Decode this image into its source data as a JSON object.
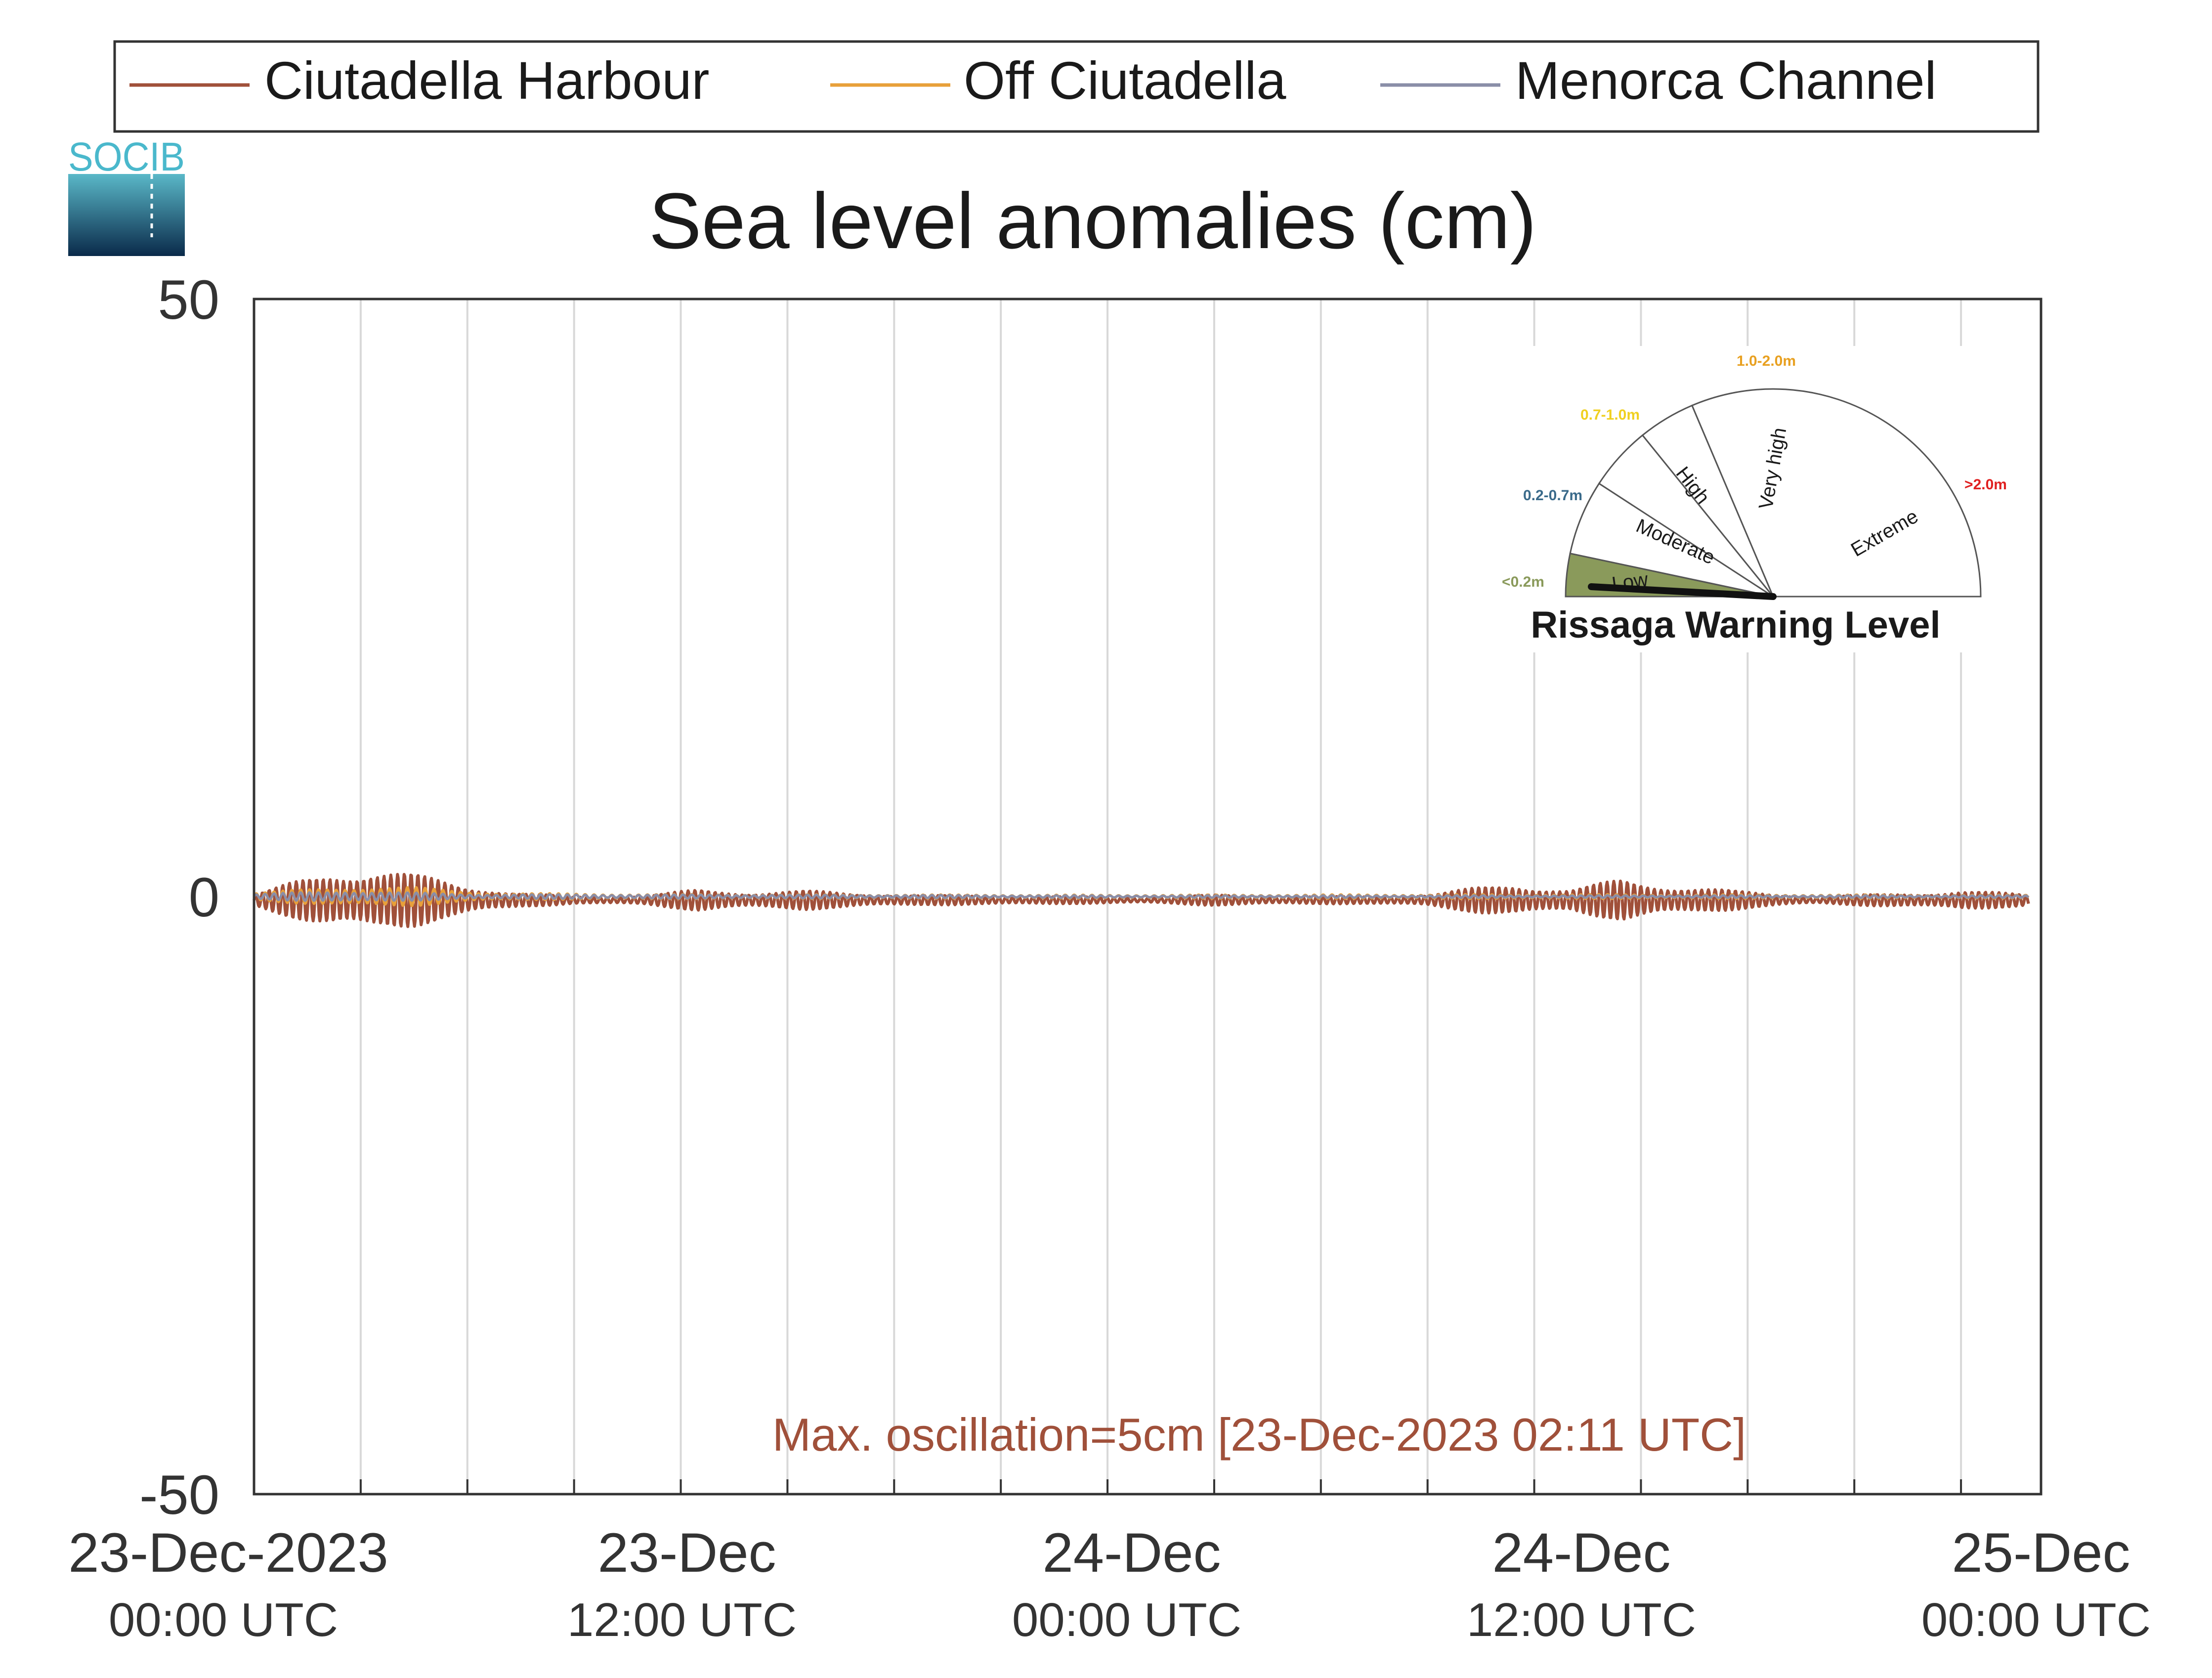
{
  "chart_data": {
    "type": "line",
    "title": "Sea level anomalies (cm)",
    "xlabel": "",
    "ylabel": "",
    "ylim": [
      -50,
      50
    ],
    "yticks": [
      "50",
      "0",
      "-50"
    ],
    "x_range": [
      "23-Dec-2023 00:00 UTC",
      "25-Dec-2023 05:00 UTC"
    ],
    "xticks": [
      {
        "date": "23-Dec-2023",
        "time": "00:00 UTC"
      },
      {
        "date": "23-Dec",
        "time": "12:00 UTC"
      },
      {
        "date": "24-Dec",
        "time": "00:00 UTC"
      },
      {
        "date": "24-Dec",
        "time": "12:00 UTC"
      },
      {
        "date": "25-Dec",
        "time": "00:00 UTC"
      }
    ],
    "grid": true,
    "legend_position": "top",
    "series": [
      {
        "name": "Ciutadella Harbour",
        "color": "#a0503a",
        "envelope_cm": [
          {
            "hour": 0,
            "amp": 0.5
          },
          {
            "hour": 1.2,
            "amp": 1.6
          },
          {
            "hour": 2.2,
            "amp": 2.5
          },
          {
            "hour": 3.3,
            "amp": 2.7
          },
          {
            "hour": 4.5,
            "amp": 2.2
          },
          {
            "hour": 6,
            "amp": 1.3
          },
          {
            "hour": 7.5,
            "amp": 0.6
          },
          {
            "hour": 9,
            "amp": 0.3
          },
          {
            "hour": 11,
            "amp": 0.4
          },
          {
            "hour": 12.5,
            "amp": 0.9
          },
          {
            "hour": 14,
            "amp": 0.7
          },
          {
            "hour": 15.5,
            "amp": 0.8
          },
          {
            "hour": 17,
            "amp": 0.6
          },
          {
            "hour": 19,
            "amp": 0.4
          },
          {
            "hour": 21,
            "amp": 0.4
          },
          {
            "hour": 23,
            "amp": 0.3
          },
          {
            "hour": 25,
            "amp": 0.25
          },
          {
            "hour": 27,
            "amp": 0.45
          },
          {
            "hour": 29,
            "amp": 0.35
          },
          {
            "hour": 31,
            "amp": 0.3
          },
          {
            "hour": 33,
            "amp": 0.5
          },
          {
            "hour": 34.5,
            "amp": 1.1
          },
          {
            "hour": 35.5,
            "amp": 1.4
          },
          {
            "hour": 37,
            "amp": 0.9
          },
          {
            "hour": 38.5,
            "amp": 1.8
          },
          {
            "hour": 39.5,
            "amp": 1.4
          },
          {
            "hour": 40.5,
            "amp": 1.1
          },
          {
            "hour": 42,
            "amp": 0.7
          },
          {
            "hour": 44,
            "amp": 0.3
          },
          {
            "hour": 46.5,
            "amp": 0.6
          },
          {
            "hour": 48,
            "amp": 0.8
          },
          {
            "hour": 49.9,
            "amp": 0.5
          }
        ]
      },
      {
        "name": "Off Ciutadella",
        "color": "#e8a03a",
        "envelope_cm": [
          {
            "hour": 0,
            "amp": 0.3
          },
          {
            "hour": 2.5,
            "amp": 0.9
          },
          {
            "hour": 4.5,
            "amp": 0.8
          },
          {
            "hour": 7,
            "amp": 0.3
          },
          {
            "hour": 12,
            "amp": 0.2
          },
          {
            "hour": 24,
            "amp": 0.15
          },
          {
            "hour": 36,
            "amp": 0.2
          },
          {
            "hour": 49.9,
            "amp": 0.15
          }
        ]
      },
      {
        "name": "Menorca Channel",
        "color": "#8a8ea8",
        "envelope_cm": [
          {
            "hour": 0,
            "amp": 0.2
          },
          {
            "hour": 2.5,
            "amp": 0.5
          },
          {
            "hour": 6,
            "amp": 0.2
          },
          {
            "hour": 24,
            "amp": 0.1
          },
          {
            "hour": 49.9,
            "amp": 0.1
          }
        ]
      }
    ],
    "annotation": "Max. oscillation=5cm [23-Dec-2023 02:11 UTC]",
    "annotation_color": "#a0503a"
  },
  "logo": {
    "text": "SOCIB"
  },
  "gauge": {
    "title": "Rissaga Warning Level",
    "current_level": "Low",
    "sectors": [
      {
        "name": "Low",
        "range": "<0.2m",
        "range_color": "#8a9a5b"
      },
      {
        "name": "Moderate",
        "range": "0.2-0.7m",
        "range_color": "#3a6a8a"
      },
      {
        "name": "High",
        "range": "0.7-1.0m",
        "range_color": "#f0d020"
      },
      {
        "name": "Very high",
        "range": "1.0-2.0m",
        "range_color": "#e8a020"
      },
      {
        "name": "Extreme",
        "range": ">2.0m",
        "range_color": "#e02020"
      }
    ],
    "active_fill": "#8a9a5b"
  }
}
